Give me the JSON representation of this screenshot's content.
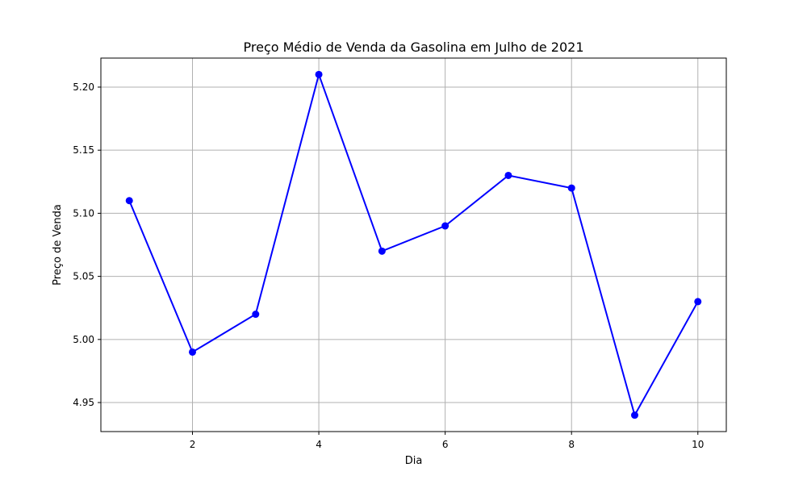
{
  "chart_data": {
    "type": "line",
    "title": "Preço Médio de Venda da Gasolina em Julho de 2021",
    "xlabel": "Dia",
    "ylabel": "Preço de Venda",
    "x": [
      1,
      2,
      3,
      4,
      5,
      6,
      7,
      8,
      9,
      10
    ],
    "series": [
      {
        "values": [
          5.11,
          4.99,
          5.02,
          5.21,
          5.07,
          5.09,
          5.13,
          5.12,
          4.94,
          5.03
        ],
        "color": "#0000ff",
        "marker": "circle"
      }
    ],
    "xlim": [
      0.55,
      10.45
    ],
    "ylim": [
      4.927,
      5.223
    ],
    "xticks": [
      2,
      4,
      6,
      8,
      10
    ],
    "xtick_labels": [
      "2",
      "4",
      "6",
      "8",
      "10"
    ],
    "yticks": [
      4.95,
      5.0,
      5.05,
      5.1,
      5.15,
      5.2
    ],
    "ytick_labels": [
      "4.95",
      "5.00",
      "5.05",
      "5.10",
      "5.15",
      "5.20"
    ],
    "grid": true
  }
}
